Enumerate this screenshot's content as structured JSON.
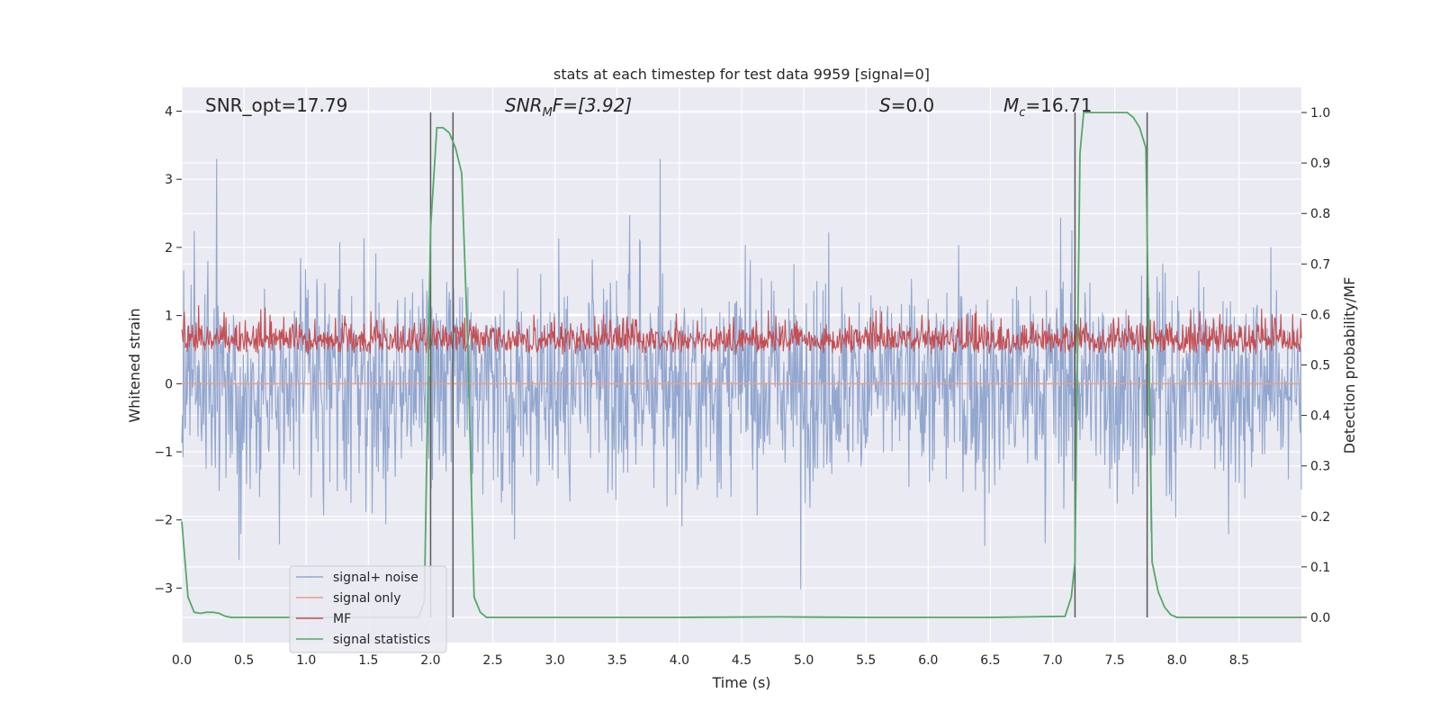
{
  "chart_data": {
    "type": "line",
    "title": "stats at each timestep for test data 9959 [signal=0]",
    "xlabel": "Time (s)",
    "ylabel_left": "Whitened strain",
    "ylabel_right": "Detection probability/MF",
    "xlim": [
      0.0,
      9.0
    ],
    "ylim_left": [
      -3.8,
      4.35
    ],
    "ylim_right": [
      -0.05,
      1.05
    ],
    "x_ticks": [
      0.0,
      0.5,
      1.0,
      1.5,
      2.0,
      2.5,
      3.0,
      3.5,
      4.0,
      4.5,
      5.0,
      5.5,
      6.0,
      6.5,
      7.0,
      7.5,
      8.0,
      8.5
    ],
    "x_tick_labels": [
      "0.0",
      "0.5",
      "1.0",
      "1.5",
      "2.0",
      "2.5",
      "3.0",
      "3.5",
      "4.0",
      "4.5",
      "5.0",
      "5.5",
      "6.0",
      "6.5",
      "7.0",
      "7.5",
      "8.0",
      "8.5"
    ],
    "y_left_ticks": [
      -3,
      -2,
      -1,
      0,
      1,
      2,
      3,
      4
    ],
    "y_left_tick_labels": [
      "−3",
      "−2",
      "−1",
      "0",
      "1",
      "2",
      "3",
      "4"
    ],
    "y_right_ticks": [
      0.0,
      0.1,
      0.2,
      0.3,
      0.4,
      0.5,
      0.6,
      0.7,
      0.8,
      0.9,
      1.0
    ],
    "y_right_tick_labels": [
      "0.0",
      "0.1",
      "0.2",
      "0.3",
      "0.4",
      "0.5",
      "0.6",
      "0.7",
      "0.8",
      "0.9",
      "1.0"
    ],
    "annotations": {
      "snr_opt": "SNR_opt=17.79",
      "snr_mf_main": "SNR",
      "snr_mf_sub": "M",
      "snr_mf_tail": "F=[3.92]",
      "s_var": "S",
      "s_val": "=0.0",
      "mc_var": "M",
      "mc_sub": "c",
      "mc_val": "=16.71"
    },
    "vertical_lines": [
      2.0,
      2.18,
      7.18,
      7.76
    ],
    "series": [
      {
        "name": "signal+ noise",
        "axis": "left",
        "color": "#92a7cf",
        "description": "noise-like whitened strain, mostly within -1.3 to 1.7 with peaks to about 3.3 and troughs to about -3.5"
      },
      {
        "name": "signal only",
        "axis": "left",
        "color": "#e8a085",
        "x": [
          0.0,
          9.0
        ],
        "y": [
          0.0,
          0.0
        ]
      },
      {
        "name": "MF",
        "axis": "right",
        "color": "#c44e52",
        "description": "matched filter output fluctuating between about 0.47 and 0.63"
      },
      {
        "name": "signal statistics",
        "axis": "right",
        "color": "#55a868",
        "x": [
          0.0,
          0.05,
          0.1,
          0.15,
          0.2,
          0.25,
          0.3,
          0.35,
          0.4,
          1.5,
          1.9,
          1.95,
          2.0,
          2.05,
          2.1,
          2.15,
          2.2,
          2.25,
          2.3,
          2.35,
          2.4,
          2.45,
          2.5,
          3.0,
          4.0,
          4.8,
          5.5,
          6.5,
          7.1,
          7.15,
          7.18,
          7.22,
          7.25,
          7.3,
          7.4,
          7.5,
          7.6,
          7.65,
          7.7,
          7.75,
          7.8,
          7.85,
          7.9,
          7.95,
          8.0,
          8.5,
          9.0
        ],
        "y": [
          0.19,
          0.04,
          0.01,
          0.008,
          0.01,
          0.01,
          0.008,
          0.002,
          0.0,
          0.0,
          0.0,
          0.03,
          0.77,
          0.97,
          0.97,
          0.96,
          0.93,
          0.88,
          0.53,
          0.04,
          0.01,
          0.0,
          0.0,
          0.0,
          0.0,
          0.001,
          0.0,
          0.0,
          0.002,
          0.04,
          0.11,
          0.92,
          1.0,
          1.0,
          1.0,
          1.0,
          1.0,
          0.99,
          0.97,
          0.93,
          0.11,
          0.05,
          0.02,
          0.005,
          0.0,
          0.0,
          0.0
        ]
      }
    ],
    "legend": {
      "position": "lower-left",
      "entries": [
        "signal+ noise",
        "signal only",
        "MF",
        "signal statistics"
      ]
    },
    "grid": true
  },
  "colors": {
    "plot_bg": "#eaeaf2",
    "grid": "#ffffff",
    "noise": "#92a7cf",
    "signal_only": "#e8a085",
    "mf": "#c44e52",
    "stat": "#55a868",
    "vline": "#595959"
  }
}
